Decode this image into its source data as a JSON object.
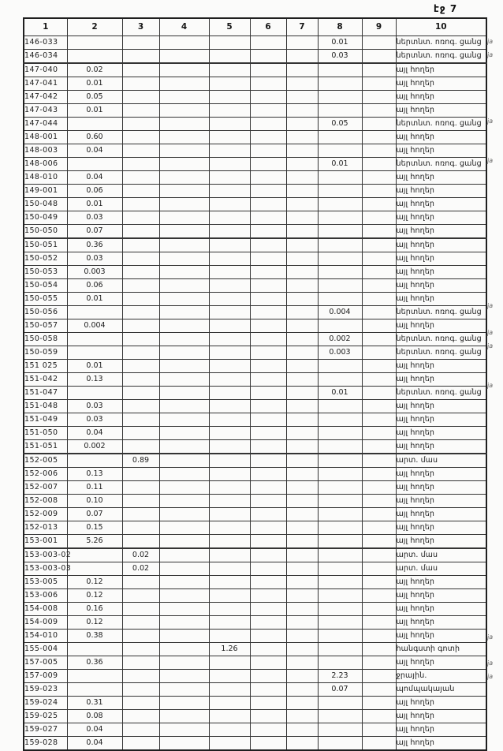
{
  "page": {
    "label": "էջ 7"
  },
  "table": {
    "headers": [
      "1",
      "2",
      "3",
      "4",
      "5",
      "6",
      "7",
      "8",
      "9",
      "10"
    ],
    "rows": [
      {
        "cells": [
          "146-033",
          "",
          "",
          "",
          "",
          "",
          "",
          "0.01",
          "",
          "ներտնտ. ոռոգ. ցանց"
        ],
        "margin_note": "ja"
      },
      {
        "cells": [
          "146-034",
          "",
          "",
          "",
          "",
          "",
          "",
          "0.03",
          "",
          "ներտնտ. ոռոգ. ցանց"
        ],
        "margin_note": "ja"
      },
      {
        "cells": [
          "147-040",
          "0.02",
          "",
          "",
          "",
          "",
          "",
          "",
          "",
          "այլ հողեր"
        ],
        "margin_note": ""
      },
      {
        "cells": [
          "147-041",
          "0.01",
          "",
          "",
          "",
          "",
          "",
          "",
          "",
          "այլ հողեր"
        ],
        "margin_note": ""
      },
      {
        "cells": [
          "147-042",
          "0.05",
          "",
          "",
          "",
          "",
          "",
          "",
          "",
          "այլ հողեր"
        ],
        "margin_note": ""
      },
      {
        "cells": [
          "147-043",
          "0.01",
          "",
          "",
          "",
          "",
          "",
          "",
          "",
          "այլ հողեր"
        ],
        "margin_note": ""
      },
      {
        "cells": [
          "147-044",
          "",
          "",
          "",
          "",
          "",
          "",
          "0.05",
          "",
          "ներտնտ. ոռոգ. ցանց"
        ],
        "margin_note": "ja"
      },
      {
        "cells": [
          "148-001",
          "0.60",
          "",
          "",
          "",
          "",
          "",
          "",
          "",
          "այլ հողեր"
        ],
        "margin_note": ""
      },
      {
        "cells": [
          "148-003",
          "0.04",
          "",
          "",
          "",
          "",
          "",
          "",
          "",
          "այլ հողեր"
        ],
        "margin_note": ""
      },
      {
        "cells": [
          "148-006",
          "",
          "",
          "",
          "",
          "",
          "",
          "0.01",
          "",
          "ներտնտ. ոռոգ. ցանց"
        ],
        "margin_note": "ja"
      },
      {
        "cells": [
          "148-010",
          "0.04",
          "",
          "",
          "",
          "",
          "",
          "",
          "",
          "այլ հողեր"
        ],
        "margin_note": ""
      },
      {
        "cells": [
          "149-001",
          "0.06",
          "",
          "",
          "",
          "",
          "",
          "",
          "",
          "այլ հողեր"
        ],
        "margin_note": ""
      },
      {
        "cells": [
          "150-048",
          "0.01",
          "",
          "",
          "",
          "",
          "",
          "",
          "",
          "այլ հողեր"
        ],
        "margin_note": ""
      },
      {
        "cells": [
          "150-049",
          "0.03",
          "",
          "",
          "",
          "",
          "",
          "",
          "",
          "այլ հողեր"
        ],
        "margin_note": ""
      },
      {
        "cells": [
          "150-050",
          "0.07",
          "",
          "",
          "",
          "",
          "",
          "",
          "",
          "այլ հողեր"
        ],
        "margin_note": ""
      },
      {
        "cells": [
          "150-051",
          "0.36",
          "",
          "",
          "",
          "",
          "",
          "",
          "",
          "այլ հողեր"
        ],
        "margin_note": ""
      },
      {
        "cells": [
          "150-052",
          "0.03",
          "",
          "",
          "",
          "",
          "",
          "",
          "",
          "այլ հողեր"
        ],
        "margin_note": ""
      },
      {
        "cells": [
          "150-053",
          "0.003",
          "",
          "",
          "",
          "",
          "",
          "",
          "",
          "այլ հողեր"
        ],
        "margin_note": ""
      },
      {
        "cells": [
          "150-054",
          "0.06",
          "",
          "",
          "",
          "",
          "",
          "",
          "",
          "այլ հողեր"
        ],
        "margin_note": ""
      },
      {
        "cells": [
          "150-055",
          "0.01",
          "",
          "",
          "",
          "",
          "",
          "",
          "",
          "այլ հողեր"
        ],
        "margin_note": ""
      },
      {
        "cells": [
          "150-056",
          "",
          "",
          "",
          "",
          "",
          "",
          "0.004",
          "",
          "ներտնտ. ոռոգ. ցանց"
        ],
        "margin_note": "ja"
      },
      {
        "cells": [
          "150-057",
          "0.004",
          "",
          "",
          "",
          "",
          "",
          "",
          "",
          "այլ հողեր"
        ],
        "margin_note": ""
      },
      {
        "cells": [
          "150-058",
          "",
          "",
          "",
          "",
          "",
          "",
          "0.002",
          "",
          "ներտնտ. ոռոգ. ցանց"
        ],
        "margin_note": "ja"
      },
      {
        "cells": [
          "150-059",
          "",
          "",
          "",
          "",
          "",
          "",
          "0.003",
          "",
          "ներտնտ. ոռոգ. ցանց"
        ],
        "margin_note": "ja"
      },
      {
        "cells": [
          "151 025",
          "0.01",
          "",
          "",
          "",
          "",
          "",
          "",
          "",
          "այլ հողեր"
        ],
        "margin_note": ""
      },
      {
        "cells": [
          "151-042",
          "0.13",
          "",
          "",
          "",
          "",
          "",
          "",
          "",
          "այլ հողեր"
        ],
        "margin_note": ""
      },
      {
        "cells": [
          "151-047",
          "",
          "",
          "",
          "",
          "",
          "",
          "0.01",
          "",
          "ներտնտ. ոռոգ. ցանց"
        ],
        "margin_note": "ja"
      },
      {
        "cells": [
          "151-048",
          "0.03",
          "",
          "",
          "",
          "",
          "",
          "",
          "",
          "այլ հողեր"
        ],
        "margin_note": ""
      },
      {
        "cells": [
          "151-049",
          "0.03",
          "",
          "",
          "",
          "",
          "",
          "",
          "",
          "այլ հողեր"
        ],
        "margin_note": ""
      },
      {
        "cells": [
          "151-050",
          "0.04",
          "",
          "",
          "",
          "",
          "",
          "",
          "",
          "այլ հողեր"
        ],
        "margin_note": ""
      },
      {
        "cells": [
          "151-051",
          "0.002",
          "",
          "",
          "",
          "",
          "",
          "",
          "",
          "այլ հողեր"
        ],
        "margin_note": ""
      },
      {
        "cells": [
          "152-005",
          "",
          "0.89",
          "",
          "",
          "",
          "",
          "",
          "",
          "արտ. մաս"
        ],
        "margin_note": ""
      },
      {
        "cells": [
          "152-006",
          "0.13",
          "",
          "",
          "",
          "",
          "",
          "",
          "",
          "այլ հողեր"
        ],
        "margin_note": ""
      },
      {
        "cells": [
          "152-007",
          "0.11",
          "",
          "",
          "",
          "",
          "",
          "",
          "",
          "այլ հողեր"
        ],
        "margin_note": ""
      },
      {
        "cells": [
          "152-008",
          "0.10",
          "",
          "",
          "",
          "",
          "",
          "",
          "",
          "այլ հողեր"
        ],
        "margin_note": ""
      },
      {
        "cells": [
          "152-009",
          "0.07",
          "",
          "",
          "",
          "",
          "",
          "",
          "",
          "այլ հողեր"
        ],
        "margin_note": ""
      },
      {
        "cells": [
          "152-013",
          "0.15",
          "",
          "",
          "",
          "",
          "",
          "",
          "",
          "այլ հողեր"
        ],
        "margin_note": ""
      },
      {
        "cells": [
          "153-001",
          "5.26",
          "",
          "",
          "",
          "",
          "",
          "",
          "",
          "այլ հողեր"
        ],
        "margin_note": ""
      },
      {
        "cells": [
          "153-003-02",
          "",
          "0.02",
          "",
          "",
          "",
          "",
          "",
          "",
          "արտ. մաս"
        ],
        "margin_note": ""
      },
      {
        "cells": [
          "153-003-03",
          "",
          "0.02",
          "",
          "",
          "",
          "",
          "",
          "",
          "արտ. մաս"
        ],
        "margin_note": ""
      },
      {
        "cells": [
          "153-005",
          "0.12",
          "",
          "",
          "",
          "",
          "",
          "",
          "",
          "այլ հողեր"
        ],
        "margin_note": ""
      },
      {
        "cells": [
          "153-006",
          "0.12",
          "",
          "",
          "",
          "",
          "",
          "",
          "",
          "այլ հողեր"
        ],
        "margin_note": ""
      },
      {
        "cells": [
          "154-008",
          "0.16",
          "",
          "",
          "",
          "",
          "",
          "",
          "",
          "այլ հողեր"
        ],
        "margin_note": ""
      },
      {
        "cells": [
          "154-009",
          "0.12",
          "",
          "",
          "",
          "",
          "",
          "",
          "",
          "այլ հողեր"
        ],
        "margin_note": ""
      },
      {
        "cells": [
          "154-010",
          "0.38",
          "",
          "",
          "",
          "",
          "",
          "",
          "",
          "այլ հողեր"
        ],
        "margin_note": ""
      },
      {
        "cells": [
          "155-004",
          "",
          "",
          "",
          "1.26",
          "",
          "",
          "",
          "",
          "հանգստի գոտի"
        ],
        "margin_note": "ja"
      },
      {
        "cells": [
          "157-005",
          "0.36",
          "",
          "",
          "",
          "",
          "",
          "",
          "",
          "այլ հողեր"
        ],
        "margin_note": ""
      },
      {
        "cells": [
          "157-009",
          "",
          "",
          "",
          "",
          "",
          "",
          "2.23",
          "",
          "ջրային."
        ],
        "margin_note": "ja"
      },
      {
        "cells": [
          "159-023",
          "",
          "",
          "",
          "",
          "",
          "",
          "0.07",
          "",
          "պոմպակայան"
        ],
        "margin_note": "ja"
      },
      {
        "cells": [
          "159-024",
          "0.31",
          "",
          "",
          "",
          "",
          "",
          "",
          "",
          "այլ հողեր"
        ],
        "margin_note": ""
      },
      {
        "cells": [
          "159-025",
          "0.08",
          "",
          "",
          "",
          "",
          "",
          "",
          "",
          "այլ հողեր"
        ],
        "margin_note": ""
      },
      {
        "cells": [
          "159-027",
          "0.04",
          "",
          "",
          "",
          "",
          "",
          "",
          "",
          "այլ հողեր"
        ],
        "margin_note": ""
      },
      {
        "cells": [
          "159-028",
          "0.04",
          "",
          "",
          "",
          "",
          "",
          "",
          "",
          "այլ հողեր"
        ],
        "margin_note": ""
      }
    ]
  }
}
